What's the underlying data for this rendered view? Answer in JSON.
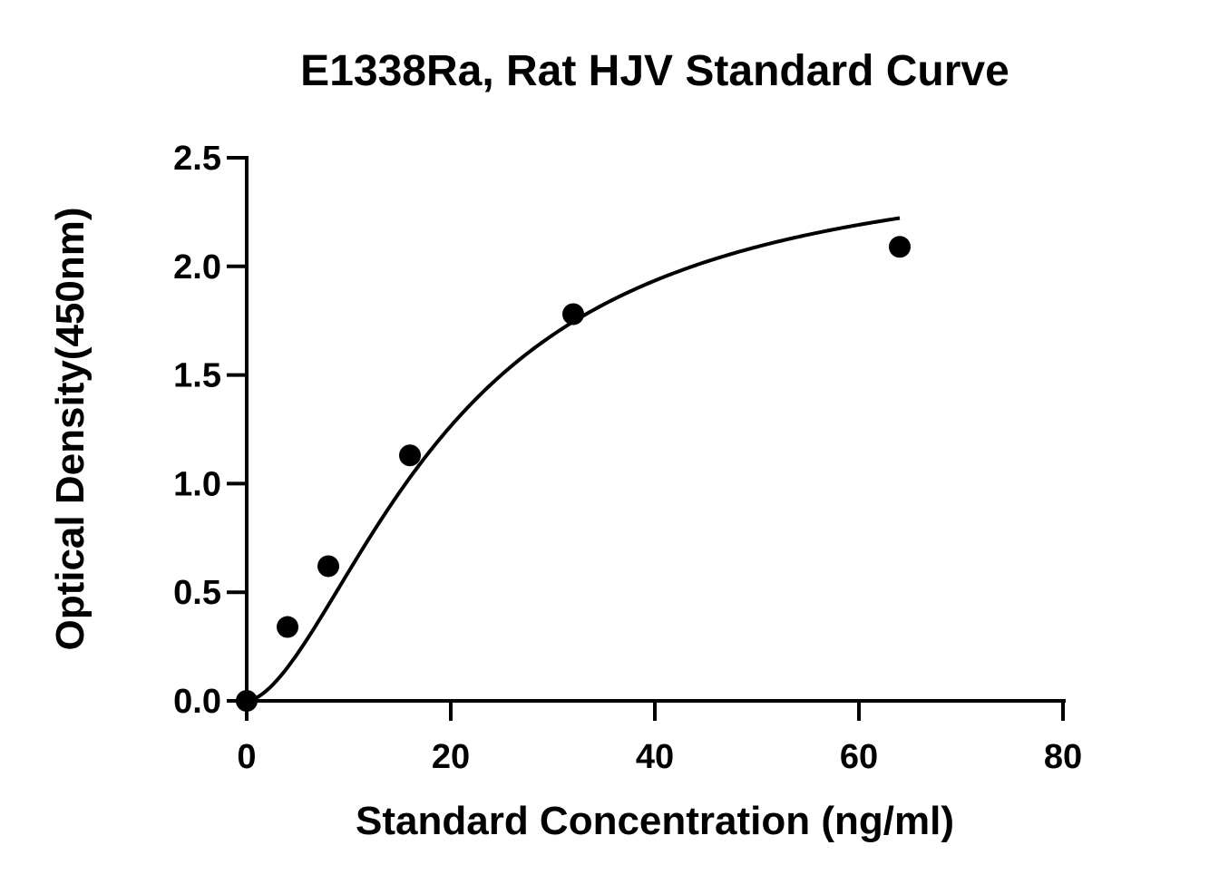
{
  "chart_data": {
    "type": "scatter",
    "title": "E1338Ra, Rat HJV Standard Curve",
    "xlabel": "Standard Concentration (ng/ml)",
    "ylabel": "Optical Density(450nm)",
    "xlim": [
      0,
      80
    ],
    "ylim": [
      0,
      2.5
    ],
    "x_ticks": [
      "0",
      "20",
      "40",
      "60",
      "80"
    ],
    "y_ticks": [
      "0.0",
      "0.5",
      "1.0",
      "1.5",
      "2.0",
      "2.5"
    ],
    "grid": false,
    "legend": "none",
    "series": [
      {
        "points": [
          {
            "x": 0,
            "y": 0.0
          },
          {
            "x": 4,
            "y": 0.34
          },
          {
            "x": 8,
            "y": 0.62
          },
          {
            "x": 16,
            "y": 1.13
          },
          {
            "x": 32,
            "y": 1.78
          },
          {
            "x": 64,
            "y": 2.09
          }
        ]
      }
    ],
    "fit_curve": {
      "type": "four-parameter logistic",
      "A": 0.0,
      "B": 1.7,
      "C": 20.0,
      "D": 2.53
    },
    "colors": {
      "points": "#000000",
      "curve": "#000000",
      "axes": "#000000"
    }
  }
}
